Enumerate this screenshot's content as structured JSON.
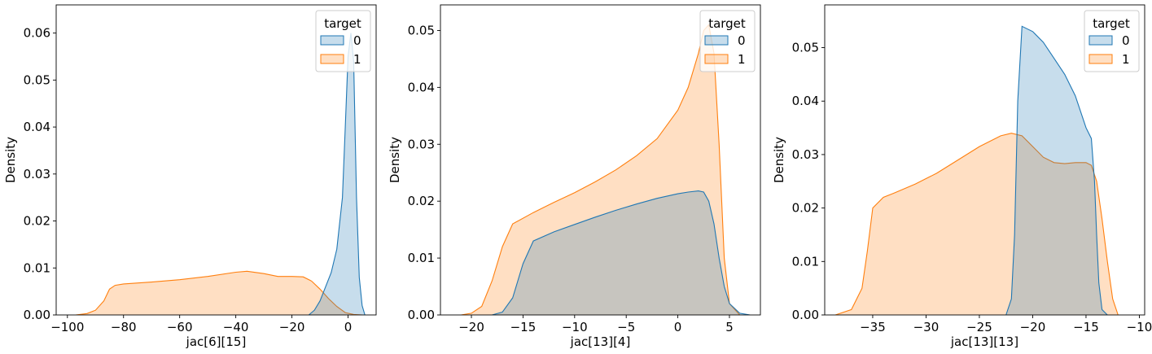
{
  "colors": {
    "blue": "#1f77b4",
    "orange": "#ff7f0e"
  },
  "chart_data": [
    {
      "type": "area",
      "xlabel": "jac[6][15]",
      "ylabel": "Density",
      "xlim": [
        -104,
        10
      ],
      "ylim": [
        0,
        0.066
      ],
      "xticks": [
        -100,
        -80,
        -60,
        -40,
        -20,
        0
      ],
      "xtick_labels": [
        "−100",
        "−80",
        "−60",
        "−40",
        "−20",
        "0"
      ],
      "yticks": [
        0,
        0.01,
        0.02,
        0.03,
        0.04,
        0.05,
        0.06
      ],
      "ytick_labels": [
        "0.00",
        "0.01",
        "0.02",
        "0.03",
        "0.04",
        "0.05",
        "0.06"
      ],
      "legend": {
        "title": "target",
        "position": "top-right",
        "entries": [
          "0",
          "1"
        ]
      },
      "series": [
        {
          "name": "1",
          "color": "#ff7f0e",
          "x": [
            -97,
            -93,
            -90,
            -87,
            -85,
            -83,
            -80,
            -70,
            -60,
            -50,
            -40,
            -36,
            -30,
            -25,
            -20,
            -16,
            -13,
            -10,
            -7,
            -4,
            -1,
            2,
            5
          ],
          "y": [
            0,
            0.0003,
            0.001,
            0.003,
            0.0055,
            0.0063,
            0.0066,
            0.007,
            0.0075,
            0.0082,
            0.0091,
            0.0093,
            0.0088,
            0.0082,
            0.0082,
            0.0081,
            0.0072,
            0.0055,
            0.0035,
            0.0018,
            0.0005,
            0.0001,
            0
          ]
        },
        {
          "name": "0",
          "color": "#1f77b4",
          "x": [
            -14,
            -12,
            -10,
            -8,
            -6,
            -4,
            -2,
            -1,
            0,
            1,
            2,
            3,
            4,
            5,
            6
          ],
          "y": [
            0,
            0.001,
            0.003,
            0.006,
            0.009,
            0.014,
            0.025,
            0.04,
            0.055,
            0.06,
            0.054,
            0.025,
            0.008,
            0.002,
            0
          ]
        }
      ]
    },
    {
      "type": "area",
      "xlabel": "jac[13][4]",
      "ylabel": "Density",
      "xlim": [
        -23,
        8
      ],
      "ylim": [
        0,
        0.0545
      ],
      "xticks": [
        -20,
        -15,
        -10,
        -5,
        0,
        5
      ],
      "xtick_labels": [
        "−20",
        "−15",
        "−10",
        "−5",
        "0",
        "5"
      ],
      "yticks": [
        0,
        0.01,
        0.02,
        0.03,
        0.04,
        0.05
      ],
      "ytick_labels": [
        "0.00",
        "0.01",
        "0.02",
        "0.03",
        "0.04",
        "0.05"
      ],
      "legend": {
        "title": "target",
        "position": "top-right",
        "entries": [
          "0",
          "1"
        ]
      },
      "series": [
        {
          "name": "1",
          "color": "#ff7f0e",
          "x": [
            -21,
            -20,
            -19,
            -18,
            -17,
            -16,
            -14,
            -12,
            -10,
            -8,
            -6,
            -4,
            -2,
            0,
            1,
            2,
            2.5,
            3,
            3.5,
            4,
            4.5,
            5,
            6
          ],
          "y": [
            0,
            0.0003,
            0.0015,
            0.006,
            0.012,
            0.016,
            0.018,
            0.0198,
            0.0215,
            0.0234,
            0.0255,
            0.028,
            0.031,
            0.036,
            0.04,
            0.046,
            0.05,
            0.051,
            0.046,
            0.03,
            0.01,
            0.002,
            0
          ]
        },
        {
          "name": "0",
          "color": "#1f77b4",
          "x": [
            -18,
            -17,
            -16,
            -15,
            -14,
            -12,
            -10,
            -8,
            -6,
            -4,
            -2,
            0,
            1,
            2,
            2.5,
            3,
            3.5,
            4,
            4.5,
            5,
            6,
            7
          ],
          "y": [
            0,
            0.0005,
            0.003,
            0.009,
            0.013,
            0.0146,
            0.0159,
            0.0172,
            0.0184,
            0.0195,
            0.0205,
            0.0213,
            0.0216,
            0.0218,
            0.0216,
            0.02,
            0.016,
            0.01,
            0.005,
            0.002,
            0.0003,
            0
          ]
        }
      ]
    },
    {
      "type": "area",
      "xlabel": "jac[13][13]",
      "ylabel": "Density",
      "xlim": [
        -39.5,
        -9.5
      ],
      "ylim": [
        0,
        0.058
      ],
      "xticks": [
        -35,
        -30,
        -25,
        -20,
        -15,
        -10
      ],
      "xtick_labels": [
        "−35",
        "−30",
        "−25",
        "−20",
        "−15",
        "−10"
      ],
      "yticks": [
        0,
        0.01,
        0.02,
        0.03,
        0.04,
        0.05
      ],
      "ytick_labels": [
        "0.00",
        "0.01",
        "0.02",
        "0.03",
        "0.04",
        "0.05"
      ],
      "legend": {
        "title": "target",
        "position": "top-right",
        "entries": [
          "0",
          "1"
        ]
      },
      "series": [
        {
          "name": "1",
          "color": "#ff7f0e",
          "x": [
            -38.5,
            -37,
            -36,
            -35.5,
            -35,
            -34,
            -33,
            -31,
            -29,
            -27,
            -25,
            -23,
            -22,
            -21,
            -20,
            -19,
            -18,
            -17,
            -16,
            -15,
            -14.5,
            -14,
            -13.5,
            -13,
            -12.5,
            -12
          ],
          "y": [
            0,
            0.001,
            0.005,
            0.012,
            0.02,
            0.022,
            0.0228,
            0.0245,
            0.0265,
            0.029,
            0.0315,
            0.0335,
            0.034,
            0.0335,
            0.0315,
            0.0295,
            0.0285,
            0.0283,
            0.0285,
            0.0285,
            0.028,
            0.025,
            0.018,
            0.01,
            0.003,
            0
          ]
        },
        {
          "name": "0",
          "color": "#1f77b4",
          "x": [
            -22.5,
            -22,
            -21.7,
            -21.4,
            -21,
            -20,
            -19,
            -18,
            -17,
            -16,
            -15,
            -14.5,
            -14.2,
            -14,
            -13.8,
            -13.5,
            -13
          ],
          "y": [
            0,
            0.003,
            0.015,
            0.04,
            0.054,
            0.053,
            0.051,
            0.048,
            0.045,
            0.041,
            0.035,
            0.033,
            0.025,
            0.015,
            0.006,
            0.001,
            0
          ]
        }
      ]
    }
  ]
}
